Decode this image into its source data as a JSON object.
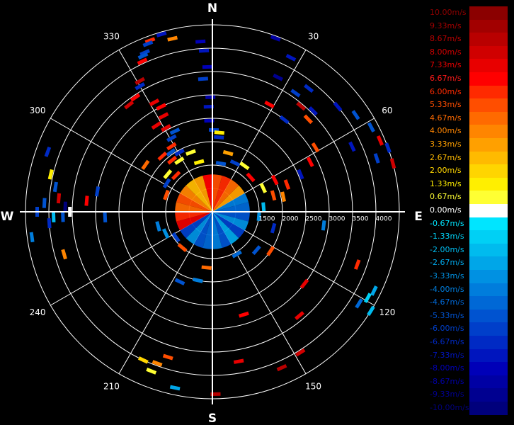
{
  "chart_data": {
    "type": "polar-doppler-scatter",
    "title": "",
    "cardinals": [
      "N",
      "E",
      "S",
      "W"
    ],
    "azimuth_labels": [
      "30",
      "60",
      "120",
      "150",
      "210",
      "240",
      "300",
      "330"
    ],
    "range_tick_labels": [
      "1500",
      "2000",
      "2500",
      "3000",
      "3500",
      "4000"
    ],
    "range_ticks": [
      1500,
      2000,
      2500,
      3000,
      3500,
      4000
    ],
    "rings": [
      500,
      1000,
      1500,
      2000,
      2500,
      3000,
      3500,
      4000
    ],
    "max_range": 4000,
    "legend": {
      "entries": [
        {
          "label": "10.00m/s",
          "color": "#8b0000",
          "text": "#8b0000"
        },
        {
          "label": "9.33m/s",
          "color": "#a20000",
          "text": "#a20000"
        },
        {
          "label": "8.67m/s",
          "color": "#b90000",
          "text": "#b90000"
        },
        {
          "label": "8.00m/s",
          "color": "#d00000",
          "text": "#d00000"
        },
        {
          "label": "7.33m/s",
          "color": "#e80000",
          "text": "#e80000"
        },
        {
          "label": "6.67m/s",
          "color": "#ff0000",
          "text": "#ff1a1a"
        },
        {
          "label": "6.00m/s",
          "color": "#ff2a00",
          "text": "#ff2a00"
        },
        {
          "label": "5.33m/s",
          "color": "#ff4e00",
          "text": "#ff4e00"
        },
        {
          "label": "4.67m/s",
          "color": "#ff6a00",
          "text": "#ff6a00"
        },
        {
          "label": "4.00m/s",
          "color": "#ff8500",
          "text": "#ff8500"
        },
        {
          "label": "3.33m/s",
          "color": "#ffa000",
          "text": "#ffa000"
        },
        {
          "label": "2.67m/s",
          "color": "#ffba00",
          "text": "#ffba00"
        },
        {
          "label": "2.00m/s",
          "color": "#ffd500",
          "text": "#ffd500"
        },
        {
          "label": "1.33m/s",
          "color": "#ffef00",
          "text": "#ffef00"
        },
        {
          "label": "0.67m/s",
          "color": "#ffff33",
          "text": "#ffff33"
        },
        {
          "label": "0.00m/s",
          "color": "#ffffff",
          "text": "#ffffff"
        },
        {
          "label": "-0.67m/s",
          "color": "#00e5ff",
          "text": "#00e5ff"
        },
        {
          "label": "-1.33m/s",
          "color": "#00d0f5",
          "text": "#00d0f5"
        },
        {
          "label": "-2.00m/s",
          "color": "#00bbee",
          "text": "#00bbee"
        },
        {
          "label": "-2.67m/s",
          "color": "#00a6e8",
          "text": "#00a6e8"
        },
        {
          "label": "-3.33m/s",
          "color": "#0091e2",
          "text": "#0091e2"
        },
        {
          "label": "-4.00m/s",
          "color": "#007ddc",
          "text": "#007ddc"
        },
        {
          "label": "-4.67m/s",
          "color": "#0068d6",
          "text": "#0068d6"
        },
        {
          "label": "-5.33m/s",
          "color": "#0053d0",
          "text": "#0053d0"
        },
        {
          "label": "-6.00m/s",
          "color": "#003fca",
          "text": "#003fca"
        },
        {
          "label": "-6.67m/s",
          "color": "#002ac4",
          "text": "#002ac4"
        },
        {
          "label": "-7.33m/s",
          "color": "#0015be",
          "text": "#0015be"
        },
        {
          "label": "-8.00m/s",
          "color": "#0000b8",
          "text": "#0000b8"
        },
        {
          "label": "-8.67m/s",
          "color": "#0000a4",
          "text": "#0000a4"
        },
        {
          "label": "-9.33m/s",
          "color": "#000090",
          "text": "#000090"
        },
        {
          "label": "-10.00m/s",
          "color": "#00007c",
          "text": "#00007c"
        }
      ]
    },
    "center_blob": {
      "max_range": 800,
      "north_half_velocity_ms": 5.5,
      "south_half_velocity_ms": -4.5
    },
    "points": [
      {
        "az": 340,
        "r": 3900,
        "v": 6.0
      },
      {
        "az": 339,
        "r": 3850,
        "v": -6.0
      },
      {
        "az": 337,
        "r": 3700,
        "v": -6.0
      },
      {
        "az": 336,
        "r": 3650,
        "v": -5.3
      },
      {
        "az": 335,
        "r": 3550,
        "v": 6.7
      },
      {
        "az": 331,
        "r": 3200,
        "v": 8.7
      },
      {
        "az": 330,
        "r": 3100,
        "v": -6.7
      },
      {
        "az": 326,
        "r": 2950,
        "v": 6.7
      },
      {
        "az": 322,
        "r": 2900,
        "v": 8.0
      },
      {
        "az": 332,
        "r": 2650,
        "v": 7.3
      },
      {
        "az": 334,
        "r": 2500,
        "v": 6.7
      },
      {
        "az": 333,
        "r": 2300,
        "v": 7.3
      },
      {
        "az": 327,
        "r": 2200,
        "v": 7.3
      },
      {
        "az": 331,
        "r": 2050,
        "v": 7.3
      },
      {
        "az": 335,
        "r": 1900,
        "v": -5.3
      },
      {
        "az": 331,
        "r": 1800,
        "v": -6.0
      },
      {
        "az": 328,
        "r": 1650,
        "v": 6.0
      },
      {
        "az": 325,
        "r": 1550,
        "v": -5.3
      },
      {
        "az": 331,
        "r": 1450,
        "v": -6.7
      },
      {
        "az": 327,
        "r": 1300,
        "v": 0.7
      },
      {
        "az": 322,
        "r": 1400,
        "v": 6.0
      },
      {
        "az": 344,
        "r": 3950,
        "v": -7.3
      },
      {
        "az": 347,
        "r": 3800,
        "v": 4.0
      },
      {
        "az": 356,
        "r": 3650,
        "v": -8.0
      },
      {
        "az": 357,
        "r": 3450,
        "v": -7.3
      },
      {
        "az": 358,
        "r": 3100,
        "v": -8.0
      },
      {
        "az": 356,
        "r": 2850,
        "v": -6.0
      },
      {
        "az": 359,
        "r": 2450,
        "v": -8.7
      },
      {
        "az": 358,
        "r": 2250,
        "v": -7.3
      },
      {
        "az": 358,
        "r": 1950,
        "v": -8.0
      },
      {
        "az": 1,
        "r": 1750,
        "v": -6.0
      },
      {
        "az": 5,
        "r": 1700,
        "v": 1.3
      },
      {
        "az": 5,
        "r": 1600,
        "v": -6.7
      },
      {
        "az": 20,
        "r": 3950,
        "v": -8.7
      },
      {
        "az": 27,
        "r": 3700,
        "v": -7.3
      },
      {
        "az": 26,
        "r": 3200,
        "v": -9.3
      },
      {
        "az": 38,
        "r": 3350,
        "v": -6.7
      },
      {
        "az": 35,
        "r": 3100,
        "v": -6.0
      },
      {
        "az": 40,
        "r": 2950,
        "v": 8.7
      },
      {
        "az": 45,
        "r": 3050,
        "v": -7.3
      },
      {
        "az": 46,
        "r": 2850,
        "v": 5.3
      },
      {
        "az": 38,
        "r": 2500,
        "v": -6.7
      },
      {
        "az": 28,
        "r": 2600,
        "v": 6.7
      },
      {
        "az": 50,
        "r": 3500,
        "v": -7.3
      },
      {
        "az": 56,
        "r": 3700,
        "v": -5.3
      },
      {
        "az": 62,
        "r": 3850,
        "v": -5.3
      },
      {
        "az": 67,
        "r": 3900,
        "v": 7.3
      },
      {
        "az": 70,
        "r": 4000,
        "v": -6.7
      },
      {
        "az": 75,
        "r": 4000,
        "v": 8.0
      },
      {
        "az": 72,
        "r": 3700,
        "v": -6.0
      },
      {
        "az": 65,
        "r": 3300,
        "v": -7.3
      },
      {
        "az": 58,
        "r": 2600,
        "v": 5.3
      },
      {
        "az": 63,
        "r": 2350,
        "v": 6.7
      },
      {
        "az": 67,
        "r": 2050,
        "v": -7.3
      },
      {
        "az": 70,
        "r": 1700,
        "v": 6.0
      },
      {
        "az": 63,
        "r": 1500,
        "v": 6.7
      },
      {
        "az": 75,
        "r": 1350,
        "v": 5.3
      },
      {
        "az": 78,
        "r": 1550,
        "v": 4.0
      },
      {
        "az": 65,
        "r": 1200,
        "v": 0.7
      },
      {
        "az": 97,
        "r": 2400,
        "v": -4.0
      },
      {
        "az": 110,
        "r": 3300,
        "v": 6.0
      },
      {
        "az": 116,
        "r": 3850,
        "v": -2.7
      },
      {
        "az": 119,
        "r": 3800,
        "v": -1.3
      },
      {
        "az": 122,
        "r": 3700,
        "v": -4.7
      },
      {
        "az": 122,
        "r": 4000,
        "v": -2.0
      },
      {
        "az": 128,
        "r": 2500,
        "v": 7.3
      },
      {
        "az": 140,
        "r": 2900,
        "v": 7.3
      },
      {
        "az": 148,
        "r": 3550,
        "v": 8.0
      },
      {
        "az": 156,
        "r": 3650,
        "v": 8.7
      },
      {
        "az": 163,
        "r": 2300,
        "v": 6.7
      },
      {
        "az": 170,
        "r": 3250,
        "v": 7.3
      },
      {
        "az": 124,
        "r": 1500,
        "v": 5.3
      },
      {
        "az": 131,
        "r": 1250,
        "v": -5.3
      },
      {
        "az": 105,
        "r": 1350,
        "v": -6.7
      },
      {
        "az": 179,
        "r": 3900,
        "v": 8.7
      },
      {
        "az": 192,
        "r": 3850,
        "v": -2.7
      },
      {
        "az": 200,
        "r": 3450,
        "v": 4.0
      },
      {
        "az": 197,
        "r": 3250,
        "v": 5.3
      },
      {
        "az": 201,
        "r": 3650,
        "v": 0.7
      },
      {
        "az": 205,
        "r": 3500,
        "v": 2.0
      },
      {
        "az": 205,
        "r": 1650,
        "v": -5.3
      },
      {
        "az": 192,
        "r": 1500,
        "v": -4.0
      },
      {
        "az": 186,
        "r": 1200,
        "v": 4.7
      },
      {
        "az": 262,
        "r": 3900,
        "v": -4.0
      },
      {
        "az": 254,
        "r": 3300,
        "v": 4.0
      },
      {
        "az": 266,
        "r": 3500,
        "v": -6.7
      },
      {
        "az": 268,
        "r": 3400,
        "v": -2.0
      },
      {
        "az": 270,
        "r": 3750,
        "v": -6.0
      },
      {
        "az": 273,
        "r": 3600,
        "v": -5.3
      },
      {
        "az": 268,
        "r": 3200,
        "v": -5.3
      },
      {
        "az": 272,
        "r": 3150,
        "v": -10.0
      },
      {
        "az": 270,
        "r": 3050,
        "v": 0.0
      },
      {
        "az": 275,
        "r": 3300,
        "v": 8.0
      },
      {
        "az": 279,
        "r": 3400,
        "v": -5.3
      },
      {
        "az": 283,
        "r": 3550,
        "v": 1.3
      },
      {
        "az": 280,
        "r": 2500,
        "v": -6.0
      },
      {
        "az": 275,
        "r": 2700,
        "v": 6.7
      },
      {
        "az": 267,
        "r": 2300,
        "v": -5.3
      },
      {
        "az": 290,
        "r": 3750,
        "v": -6.7
      },
      {
        "az": 305,
        "r": 1750,
        "v": 4.7
      },
      {
        "az": 310,
        "r": 1250,
        "v": 0.7
      },
      {
        "az": 302,
        "r": 1150,
        "v": -6.0
      },
      {
        "az": 315,
        "r": 1100,
        "v": 6.0
      },
      {
        "az": 25,
        "r": 1150,
        "v": -6.0
      },
      {
        "az": 35,
        "r": 1200,
        "v": 0.7
      },
      {
        "az": 48,
        "r": 1100,
        "v": 6.7
      },
      {
        "az": 85,
        "r": 1100,
        "v": -2.0
      },
      {
        "az": 95,
        "r": 1000,
        "v": -3.3
      },
      {
        "az": 245,
        "r": 1100,
        "v": -3.3
      },
      {
        "az": 255,
        "r": 1200,
        "v": -4.0
      },
      {
        "az": 290,
        "r": 1050,
        "v": 5.3
      },
      {
        "az": 345,
        "r": 1100,
        "v": 1.3
      },
      {
        "az": 10,
        "r": 1050,
        "v": -5.3
      },
      {
        "az": 15,
        "r": 1300,
        "v": 3.3
      },
      {
        "az": 340,
        "r": 1350,
        "v": 0.7
      },
      {
        "az": 318,
        "r": 1600,
        "v": 6.0
      },
      {
        "az": 150,
        "r": 1050,
        "v": -4.7
      },
      {
        "az": 220,
        "r": 1000,
        "v": 5.3
      },
      {
        "az": 235,
        "r": 950,
        "v": -6.0
      }
    ]
  }
}
